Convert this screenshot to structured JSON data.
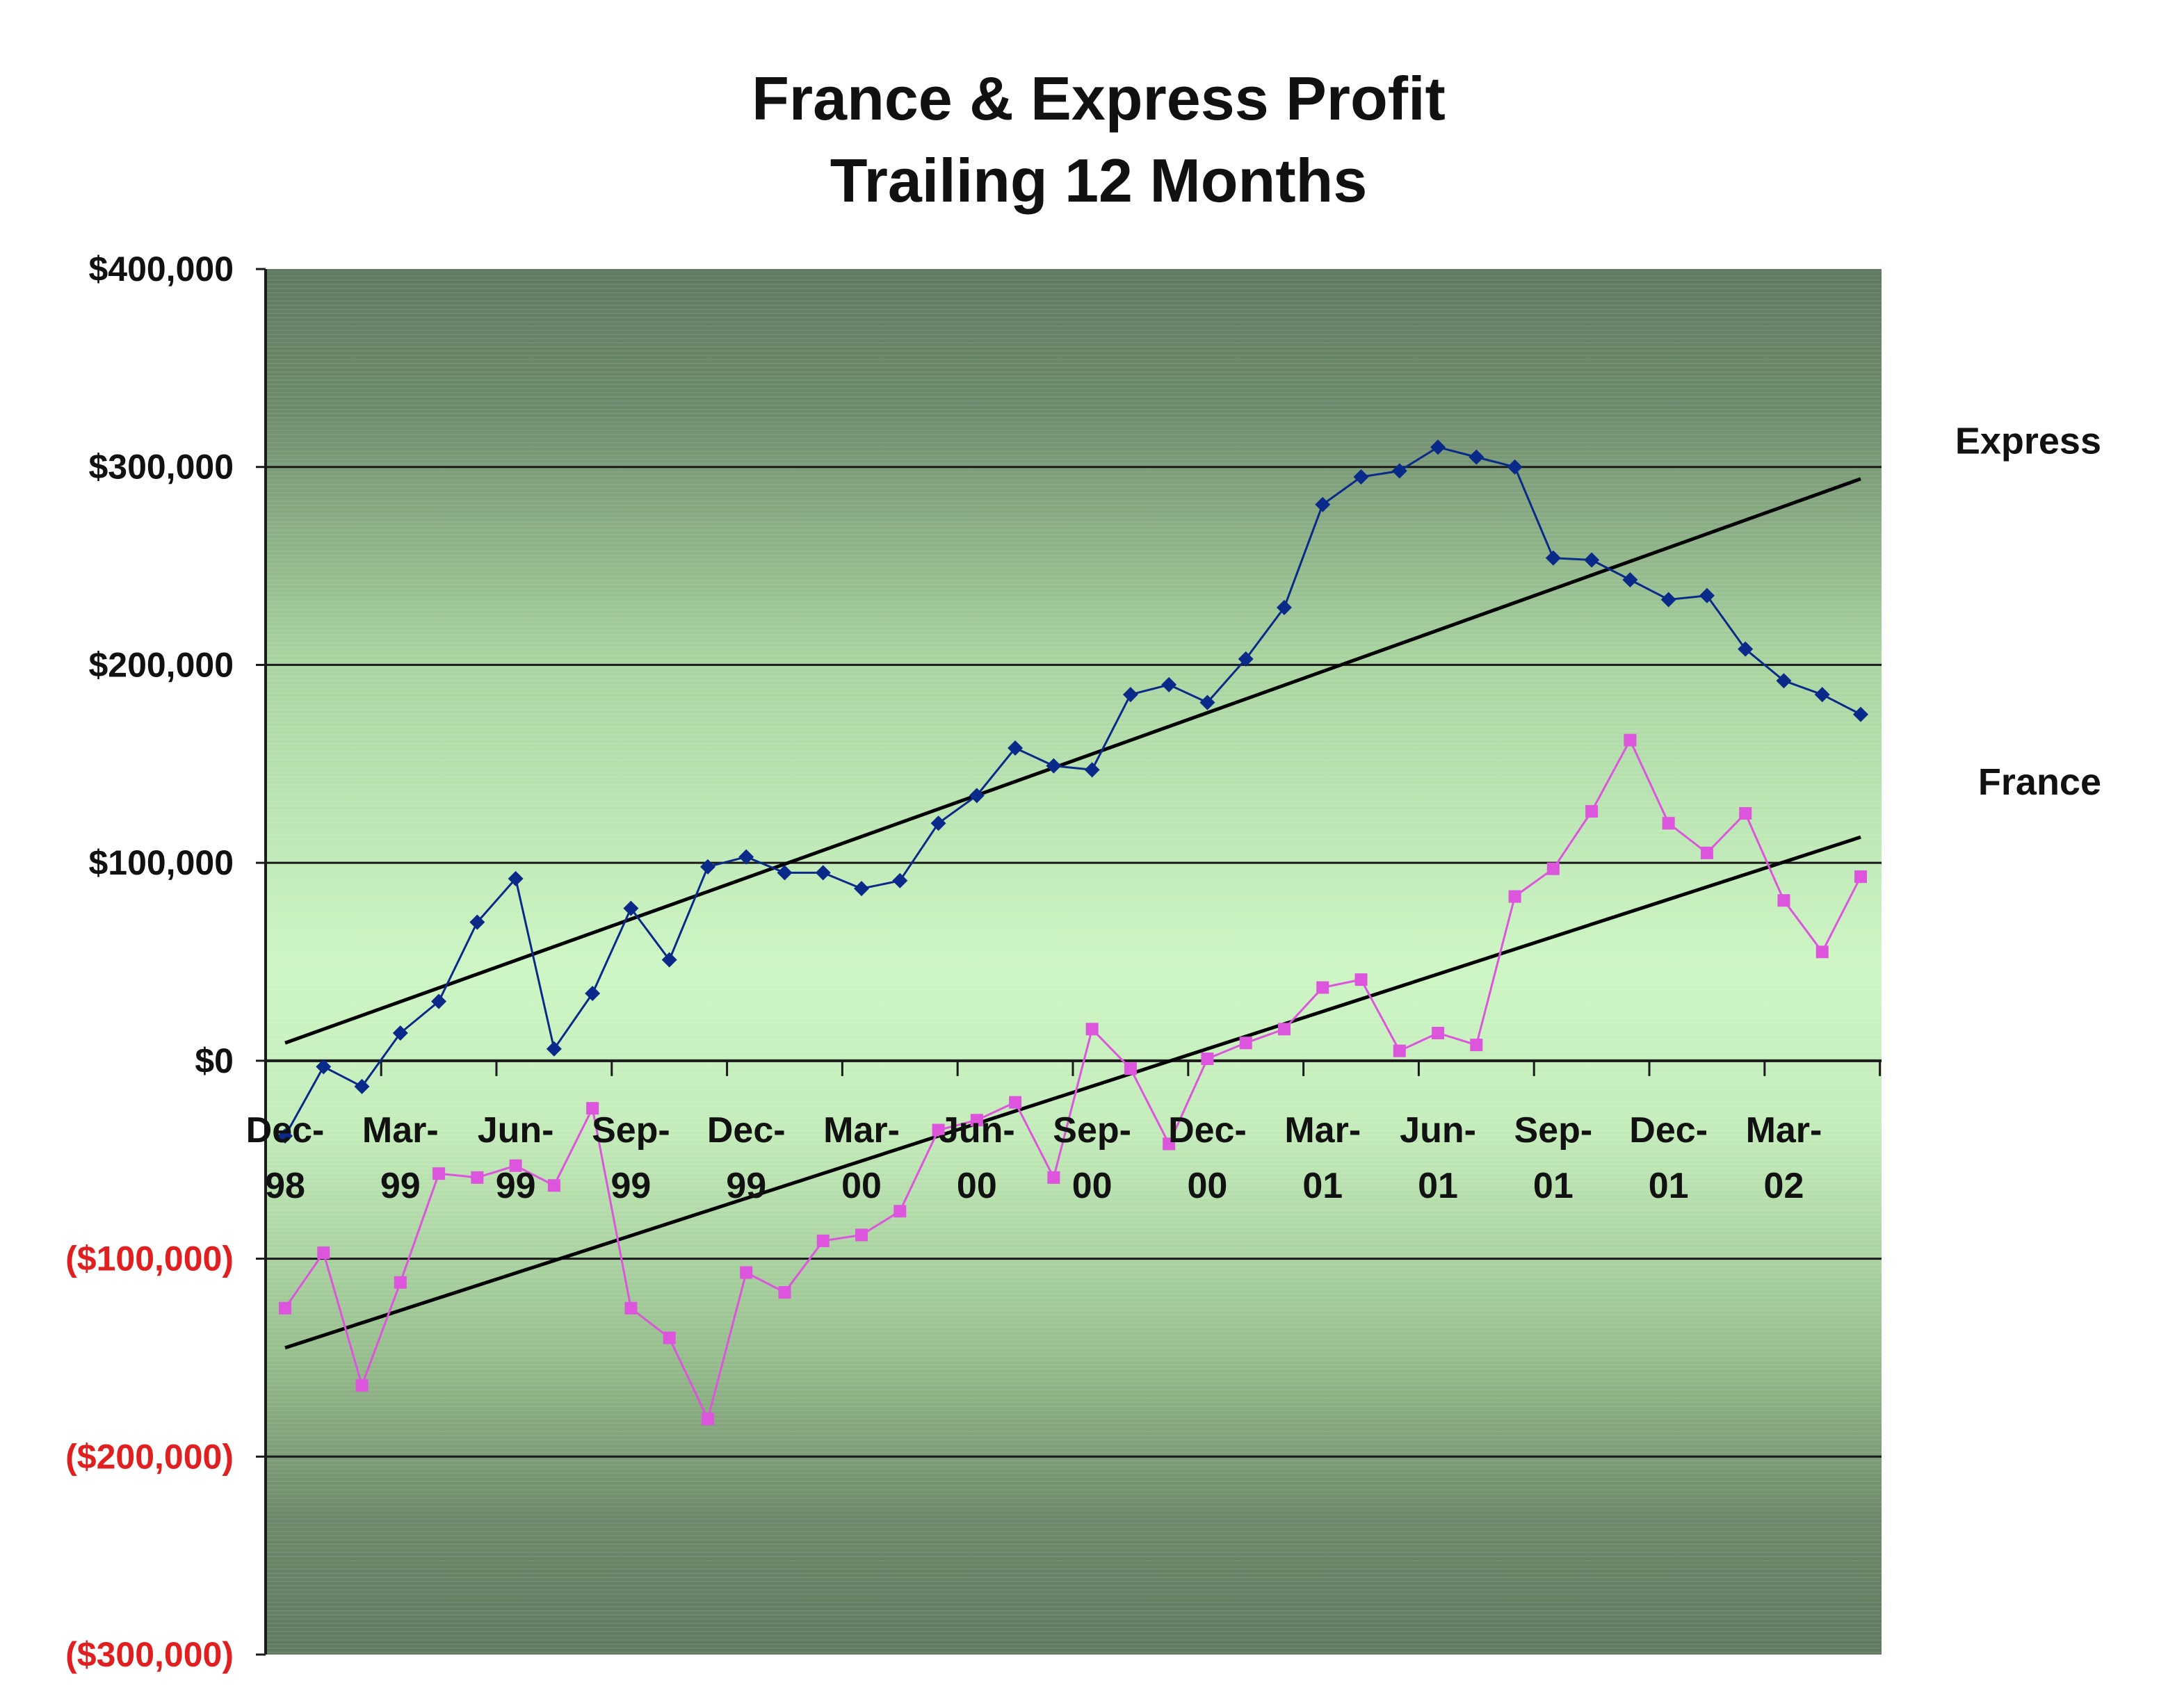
{
  "chart_data": {
    "type": "line",
    "title": "France & Express Profit",
    "subtitle": "Trailing 12 Months",
    "xlabel": "",
    "ylabel": "",
    "ylim": [
      -300000,
      400000
    ],
    "yticks": [
      {
        "value": 400000,
        "label": "$400,000"
      },
      {
        "value": 300000,
        "label": "$300,000"
      },
      {
        "value": 200000,
        "label": "$200,000"
      },
      {
        "value": 100000,
        "label": "$100,000"
      },
      {
        "value": 0,
        "label": "$0"
      },
      {
        "value": -100000,
        "label": "($100,000)"
      },
      {
        "value": -200000,
        "label": "($200,000)"
      },
      {
        "value": -300000,
        "label": "($300,000)"
      }
    ],
    "x": [
      "Dec-98",
      "Jan-99",
      "Feb-99",
      "Mar-99",
      "Apr-99",
      "May-99",
      "Jun-99",
      "Jul-99",
      "Aug-99",
      "Sep-99",
      "Oct-99",
      "Nov-99",
      "Dec-99",
      "Jan-00",
      "Feb-00",
      "Mar-00",
      "Apr-00",
      "May-00",
      "Jun-00",
      "Jul-00",
      "Aug-00",
      "Sep-00",
      "Oct-00",
      "Nov-00",
      "Dec-00",
      "Jan-01",
      "Feb-01",
      "Mar-01",
      "Apr-01",
      "May-01",
      "Jun-01",
      "Jul-01",
      "Aug-01",
      "Sep-01",
      "Oct-01",
      "Nov-01",
      "Dec-01",
      "Jan-02",
      "Feb-02",
      "Mar-02",
      "Apr-02",
      "May-02"
    ],
    "xticks": [
      {
        "index": 0,
        "line1": "Dec-",
        "line2": "98"
      },
      {
        "index": 3,
        "line1": "Mar-",
        "line2": "99"
      },
      {
        "index": 6,
        "line1": "Jun-",
        "line2": "99"
      },
      {
        "index": 9,
        "line1": "Sep-",
        "line2": "99"
      },
      {
        "index": 12,
        "line1": "Dec-",
        "line2": "99"
      },
      {
        "index": 15,
        "line1": "Mar-",
        "line2": "00"
      },
      {
        "index": 18,
        "line1": "Jun-",
        "line2": "00"
      },
      {
        "index": 21,
        "line1": "Sep-",
        "line2": "00"
      },
      {
        "index": 24,
        "line1": "Dec-",
        "line2": "00"
      },
      {
        "index": 27,
        "line1": "Mar-",
        "line2": "01"
      },
      {
        "index": 30,
        "line1": "Jun-",
        "line2": "01"
      },
      {
        "index": 33,
        "line1": "Sep-",
        "line2": "01"
      },
      {
        "index": 36,
        "line1": "Dec-",
        "line2": "01"
      },
      {
        "index": 39,
        "line1": "Mar-",
        "line2": "02"
      }
    ],
    "series": [
      {
        "name": "Express",
        "color": "#0a2a8a",
        "marker": "diamond",
        "values": [
          -38000,
          -3000,
          -13000,
          14000,
          30000,
          70000,
          92000,
          6000,
          34000,
          77000,
          51000,
          98000,
          103000,
          95000,
          95000,
          87000,
          91000,
          120000,
          134000,
          158000,
          149000,
          147000,
          185000,
          190000,
          181000,
          203000,
          229000,
          281000,
          295000,
          298000,
          310000,
          305000,
          300000,
          254000,
          253000,
          243000,
          233000,
          235000,
          208000,
          192000,
          185000,
          175000
        ]
      },
      {
        "name": "France",
        "color": "#dd55dd",
        "marker": "square",
        "values": [
          -125000,
          -97000,
          -164000,
          -112000,
          -57000,
          -59000,
          -53000,
          -63000,
          -24000,
          -125000,
          -140000,
          -181000,
          -107000,
          -117000,
          -91000,
          -88000,
          -76000,
          -35000,
          -30000,
          -21000,
          -59000,
          16000,
          -4000,
          -42000,
          1000,
          9000,
          16000,
          37000,
          41000,
          5000,
          14000,
          8000,
          83000,
          97000,
          126000,
          162000,
          120000,
          105000,
          125000,
          81000,
          55000,
          93000
        ]
      }
    ],
    "trendlines": [
      {
        "series": "Express",
        "start": 9000,
        "end": 294000,
        "color": "#000000"
      },
      {
        "series": "France",
        "start": -145000,
        "end": 113000,
        "color": "#000000"
      }
    ],
    "grid": true,
    "legend": "right",
    "colors": {
      "negative_tick": "#e02020",
      "positive_tick": "#111111",
      "plot_dark": "#5e7a5e",
      "plot_light": "#ccf5c4"
    }
  }
}
